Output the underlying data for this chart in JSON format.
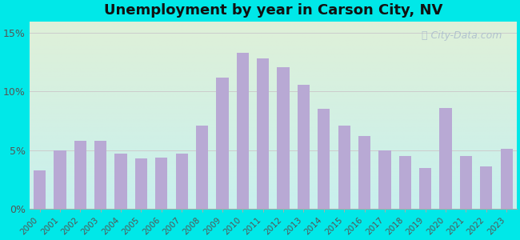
{
  "years": [
    2000,
    2001,
    2002,
    2003,
    2004,
    2005,
    2006,
    2007,
    2008,
    2009,
    2010,
    2011,
    2012,
    2013,
    2014,
    2015,
    2016,
    2017,
    2018,
    2019,
    2020,
    2021,
    2022,
    2023
  ],
  "values": [
    3.3,
    5.0,
    5.8,
    5.8,
    4.7,
    4.3,
    4.4,
    4.7,
    7.1,
    11.2,
    13.3,
    12.8,
    12.1,
    10.6,
    8.5,
    7.1,
    6.2,
    5.0,
    4.5,
    3.5,
    8.6,
    4.5,
    3.6,
    5.1
  ],
  "bar_color": "#b8a9d4",
  "title": "Unemployment by year in Carson City, NV",
  "title_fontsize": 13,
  "title_fontweight": "bold",
  "ylabel_ticks": [
    "0%",
    "5%",
    "10%",
    "15%"
  ],
  "yticks": [
    0,
    5,
    10,
    15
  ],
  "ylim": [
    0,
    16
  ],
  "bg_outer": "#00e8e8",
  "bg_plot_topleft": "#dff0d8",
  "bg_plot_bottomright": "#c8f0ee",
  "watermark_text": "City-Data.com",
  "watermark_color": "#aabbcc",
  "grid_color": "#cccccc",
  "grid_linewidth": 0.7
}
